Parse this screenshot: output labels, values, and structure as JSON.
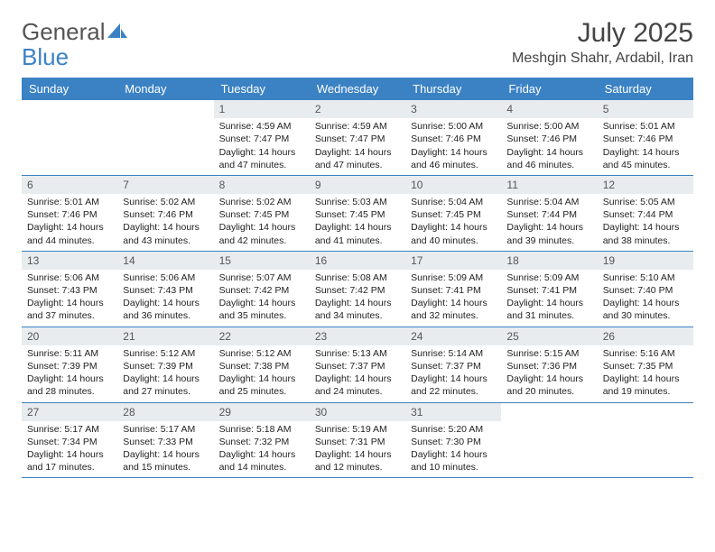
{
  "logo": {
    "text1": "General",
    "text2": "Blue"
  },
  "title": "July 2025",
  "location": "Meshgin Shahr, Ardabil, Iran",
  "colors": {
    "header_bg": "#3b82c4",
    "daynum_bg": "#e8ecef"
  },
  "weekdays": [
    "Sunday",
    "Monday",
    "Tuesday",
    "Wednesday",
    "Thursday",
    "Friday",
    "Saturday"
  ],
  "weeks": [
    [
      {
        "n": "",
        "sr": "",
        "ss": "",
        "dl": ""
      },
      {
        "n": "",
        "sr": "",
        "ss": "",
        "dl": ""
      },
      {
        "n": "1",
        "sr": "Sunrise: 4:59 AM",
        "ss": "Sunset: 7:47 PM",
        "dl": "Daylight: 14 hours and 47 minutes."
      },
      {
        "n": "2",
        "sr": "Sunrise: 4:59 AM",
        "ss": "Sunset: 7:47 PM",
        "dl": "Daylight: 14 hours and 47 minutes."
      },
      {
        "n": "3",
        "sr": "Sunrise: 5:00 AM",
        "ss": "Sunset: 7:46 PM",
        "dl": "Daylight: 14 hours and 46 minutes."
      },
      {
        "n": "4",
        "sr": "Sunrise: 5:00 AM",
        "ss": "Sunset: 7:46 PM",
        "dl": "Daylight: 14 hours and 46 minutes."
      },
      {
        "n": "5",
        "sr": "Sunrise: 5:01 AM",
        "ss": "Sunset: 7:46 PM",
        "dl": "Daylight: 14 hours and 45 minutes."
      }
    ],
    [
      {
        "n": "6",
        "sr": "Sunrise: 5:01 AM",
        "ss": "Sunset: 7:46 PM",
        "dl": "Daylight: 14 hours and 44 minutes."
      },
      {
        "n": "7",
        "sr": "Sunrise: 5:02 AM",
        "ss": "Sunset: 7:46 PM",
        "dl": "Daylight: 14 hours and 43 minutes."
      },
      {
        "n": "8",
        "sr": "Sunrise: 5:02 AM",
        "ss": "Sunset: 7:45 PM",
        "dl": "Daylight: 14 hours and 42 minutes."
      },
      {
        "n": "9",
        "sr": "Sunrise: 5:03 AM",
        "ss": "Sunset: 7:45 PM",
        "dl": "Daylight: 14 hours and 41 minutes."
      },
      {
        "n": "10",
        "sr": "Sunrise: 5:04 AM",
        "ss": "Sunset: 7:45 PM",
        "dl": "Daylight: 14 hours and 40 minutes."
      },
      {
        "n": "11",
        "sr": "Sunrise: 5:04 AM",
        "ss": "Sunset: 7:44 PM",
        "dl": "Daylight: 14 hours and 39 minutes."
      },
      {
        "n": "12",
        "sr": "Sunrise: 5:05 AM",
        "ss": "Sunset: 7:44 PM",
        "dl": "Daylight: 14 hours and 38 minutes."
      }
    ],
    [
      {
        "n": "13",
        "sr": "Sunrise: 5:06 AM",
        "ss": "Sunset: 7:43 PM",
        "dl": "Daylight: 14 hours and 37 minutes."
      },
      {
        "n": "14",
        "sr": "Sunrise: 5:06 AM",
        "ss": "Sunset: 7:43 PM",
        "dl": "Daylight: 14 hours and 36 minutes."
      },
      {
        "n": "15",
        "sr": "Sunrise: 5:07 AM",
        "ss": "Sunset: 7:42 PM",
        "dl": "Daylight: 14 hours and 35 minutes."
      },
      {
        "n": "16",
        "sr": "Sunrise: 5:08 AM",
        "ss": "Sunset: 7:42 PM",
        "dl": "Daylight: 14 hours and 34 minutes."
      },
      {
        "n": "17",
        "sr": "Sunrise: 5:09 AM",
        "ss": "Sunset: 7:41 PM",
        "dl": "Daylight: 14 hours and 32 minutes."
      },
      {
        "n": "18",
        "sr": "Sunrise: 5:09 AM",
        "ss": "Sunset: 7:41 PM",
        "dl": "Daylight: 14 hours and 31 minutes."
      },
      {
        "n": "19",
        "sr": "Sunrise: 5:10 AM",
        "ss": "Sunset: 7:40 PM",
        "dl": "Daylight: 14 hours and 30 minutes."
      }
    ],
    [
      {
        "n": "20",
        "sr": "Sunrise: 5:11 AM",
        "ss": "Sunset: 7:39 PM",
        "dl": "Daylight: 14 hours and 28 minutes."
      },
      {
        "n": "21",
        "sr": "Sunrise: 5:12 AM",
        "ss": "Sunset: 7:39 PM",
        "dl": "Daylight: 14 hours and 27 minutes."
      },
      {
        "n": "22",
        "sr": "Sunrise: 5:12 AM",
        "ss": "Sunset: 7:38 PM",
        "dl": "Daylight: 14 hours and 25 minutes."
      },
      {
        "n": "23",
        "sr": "Sunrise: 5:13 AM",
        "ss": "Sunset: 7:37 PM",
        "dl": "Daylight: 14 hours and 24 minutes."
      },
      {
        "n": "24",
        "sr": "Sunrise: 5:14 AM",
        "ss": "Sunset: 7:37 PM",
        "dl": "Daylight: 14 hours and 22 minutes."
      },
      {
        "n": "25",
        "sr": "Sunrise: 5:15 AM",
        "ss": "Sunset: 7:36 PM",
        "dl": "Daylight: 14 hours and 20 minutes."
      },
      {
        "n": "26",
        "sr": "Sunrise: 5:16 AM",
        "ss": "Sunset: 7:35 PM",
        "dl": "Daylight: 14 hours and 19 minutes."
      }
    ],
    [
      {
        "n": "27",
        "sr": "Sunrise: 5:17 AM",
        "ss": "Sunset: 7:34 PM",
        "dl": "Daylight: 14 hours and 17 minutes."
      },
      {
        "n": "28",
        "sr": "Sunrise: 5:17 AM",
        "ss": "Sunset: 7:33 PM",
        "dl": "Daylight: 14 hours and 15 minutes."
      },
      {
        "n": "29",
        "sr": "Sunrise: 5:18 AM",
        "ss": "Sunset: 7:32 PM",
        "dl": "Daylight: 14 hours and 14 minutes."
      },
      {
        "n": "30",
        "sr": "Sunrise: 5:19 AM",
        "ss": "Sunset: 7:31 PM",
        "dl": "Daylight: 14 hours and 12 minutes."
      },
      {
        "n": "31",
        "sr": "Sunrise: 5:20 AM",
        "ss": "Sunset: 7:30 PM",
        "dl": "Daylight: 14 hours and 10 minutes."
      },
      {
        "n": "",
        "sr": "",
        "ss": "",
        "dl": ""
      },
      {
        "n": "",
        "sr": "",
        "ss": "",
        "dl": ""
      }
    ]
  ]
}
